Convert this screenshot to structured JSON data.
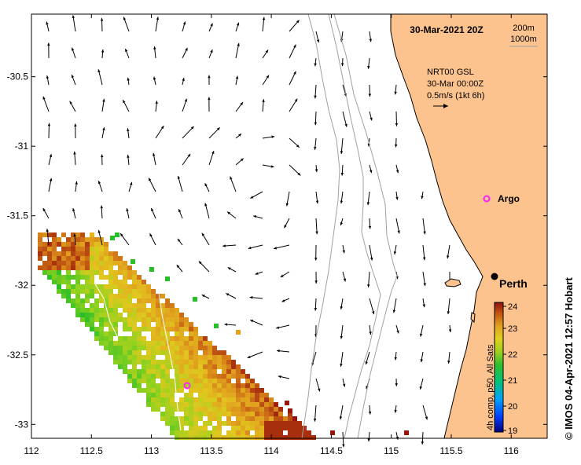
{
  "map": {
    "date_label": "30-Mar-2021 20Z",
    "contour_labels": [
      "200m",
      "1000m"
    ],
    "current_legend": {
      "lines": [
        "NRT00 GSL",
        "30-Mar 00:00Z",
        "0.5m/s (1kt 6h)"
      ]
    },
    "places": [
      {
        "name": "Argo",
        "lon": 115.85,
        "lat": -31.42,
        "marker": "magenta-circle"
      },
      {
        "name": "Perth",
        "lon": 115.86,
        "lat": -31.95,
        "marker": "black-dot"
      }
    ],
    "float_marker": {
      "lon": 113.31,
      "lat": -32.73,
      "color": "#ff22ff"
    },
    "lon_ticks": [
      "112",
      "112.5",
      "113",
      "113.5",
      "114",
      "114.5",
      "115",
      "115.5",
      "116"
    ],
    "lat_ticks": [
      "-30.5",
      "-31",
      "-31.5",
      "-32",
      "-32.5",
      "-33"
    ],
    "extent": {
      "lon": [
        112.0,
        116.3
      ],
      "lat": [
        -33.1,
        -30.05
      ]
    },
    "colorbar": {
      "title": "4h comp, p50, All Sats",
      "ticks": [
        "24",
        "23",
        "22",
        "21",
        "20",
        "19"
      ],
      "range": [
        19,
        24
      ]
    },
    "credit": "© IMOS 04-Apr-2021 12:57 Hobart",
    "colors": {
      "land": "#fdc38e",
      "ocean": "#ffffff",
      "coast": "#000000",
      "isobath": "#a0a0a0"
    }
  }
}
